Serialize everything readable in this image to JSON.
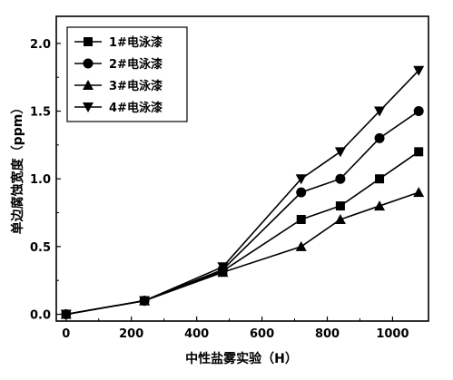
{
  "chart_data": {
    "type": "line",
    "xlabel": "中性盐雾实验（H）",
    "ylabel": "单边腐蚀宽度（ppm）",
    "xlim": [
      -30,
      1110
    ],
    "ylim": [
      -0.05,
      2.2
    ],
    "xticks": [
      0,
      200,
      400,
      600,
      800,
      1000
    ],
    "yticks": [
      0.0,
      0.5,
      1.0,
      1.5,
      2.0
    ],
    "xtick_labels": [
      "0",
      "200",
      "400",
      "600",
      "800",
      "1000"
    ],
    "ytick_labels": [
      "0.0",
      "0.5",
      "1.0",
      "1.5",
      "2.0"
    ],
    "x": [
      0,
      240,
      480,
      720,
      840,
      960,
      1080
    ],
    "series": [
      {
        "name": "1#电泳漆",
        "marker": "square",
        "values": [
          0.0,
          0.1,
          0.32,
          0.7,
          0.8,
          1.0,
          1.2
        ]
      },
      {
        "name": "2#电泳漆",
        "marker": "circle",
        "values": [
          0.0,
          0.1,
          0.33,
          0.9,
          1.0,
          1.3,
          1.5
        ]
      },
      {
        "name": "3#电泳漆",
        "marker": "triangle-up",
        "values": [
          0.0,
          0.1,
          0.31,
          0.5,
          0.7,
          0.8,
          0.9
        ]
      },
      {
        "name": "4#电泳漆",
        "marker": "triangle-down",
        "values": [
          0.0,
          0.1,
          0.35,
          1.0,
          1.2,
          1.5,
          1.8
        ]
      }
    ],
    "legend_position": "top-left",
    "grid": false
  }
}
